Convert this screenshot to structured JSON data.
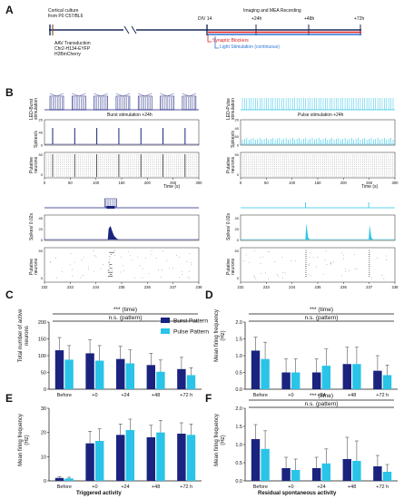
{
  "panels": {
    "A": "A",
    "B": "B",
    "C": "C",
    "D": "D",
    "E": "E",
    "F": "F"
  },
  "timeline": {
    "culture_line1": "Cortical culture",
    "culture_line2": "from P0 C57/BL6",
    "aav_line1": "AAV Transduction",
    "aav_line2": "Chr2-H134-EYFP",
    "aav_line3": "H2BmCherry",
    "div": "DIV 14",
    "recording": "Imaging and MEA Recording",
    "t24": "+24h",
    "t48": "+48h",
    "t72": "+72h",
    "blockers": "Synaptic Blockers",
    "light": "Light Stimulation (continuous)",
    "colors": {
      "blockers": "#e02020",
      "light": "#2a73d6",
      "axis": "#1a2a5a"
    }
  },
  "panelB": {
    "left": {
      "led_label": "LED-Burst stimulation",
      "title": "Burst stimulation +24h",
      "ylabel_rate": "Spikes/s",
      "ylabel_neurons": "Putative neurons",
      "ticks_top": [
        "0",
        "50",
        "100",
        "150",
        "200",
        "250",
        "300"
      ],
      "xlabel": "Time (s)",
      "rate_ticks": [
        "0",
        "40",
        "20"
      ],
      "neuron_ticks": [
        "50",
        "0"
      ],
      "zoom_ylabel": "Spikes/ 0.02s",
      "zoom_rate_ticks": [
        "0",
        "20",
        "40"
      ],
      "zoom_neuron_ticks": [
        "50",
        "0"
      ],
      "zoom_ticks": [
        "232",
        "233",
        "234",
        "235",
        "236",
        "237",
        "238"
      ]
    },
    "right": {
      "led_label": "LED-Pulse stimulation",
      "title": "Pulse stimulation +24h",
      "ylabel_rate": "Spikes/s",
      "ylabel_neurons": "Putative neurons",
      "ticks_top": [
        "0",
        "50",
        "100",
        "150",
        "200",
        "250",
        "300"
      ],
      "xlabel": "Time (s)",
      "rate_ticks": [
        "0",
        "60",
        "40",
        "20"
      ],
      "neuron_ticks": [
        "50",
        "0"
      ],
      "zoom_ylabel": "Spikes/ 0.02s",
      "zoom_rate_ticks": [
        "0",
        "20",
        "40"
      ],
      "zoom_neuron_ticks": [
        "50",
        "0"
      ],
      "zoom_ticks": [
        "232",
        "233",
        "234",
        "235",
        "236",
        "237",
        "238"
      ]
    },
    "colors": {
      "burst": "#1a237e",
      "pulse": "#29c4e8"
    }
  },
  "chart_data": [
    {
      "panel": "C",
      "type": "bar",
      "categories": [
        "Before",
        "+0",
        "+24",
        "+48",
        "+72 h"
      ],
      "ylabel": "Total number of active neurons",
      "ylim": [
        0,
        200
      ],
      "yticks": [
        "0",
        "50",
        "100",
        "150",
        "200"
      ],
      "stats_time": "*** (time)",
      "stats_pattern": "n.s. (pattern)",
      "series": [
        {
          "name": "Burst Pattern",
          "color": "#1a237e",
          "values": [
            116,
            107,
            90,
            72,
            60
          ],
          "errors": [
            38,
            40,
            38,
            35,
            35
          ]
        },
        {
          "name": "Pulse Pattern",
          "color": "#29c4e8",
          "values": [
            88,
            85,
            77,
            52,
            42
          ],
          "errors": [
            42,
            45,
            40,
            35,
            22
          ]
        }
      ]
    },
    {
      "panel": "D",
      "type": "bar",
      "categories": [
        "Before",
        "+0",
        "+24",
        "+48",
        "+72 h"
      ],
      "ylabel": "Mean firing frequency (Hz)",
      "ylim": [
        0,
        2.0
      ],
      "yticks": [
        "0.0",
        "0.5",
        "1.0",
        "1.5",
        "2.0"
      ],
      "stats_time": "*** (time)",
      "stats_pattern": "n.s. (pattern)",
      "series": [
        {
          "name": "Burst Pattern",
          "color": "#1a237e",
          "values": [
            1.15,
            0.5,
            0.5,
            0.75,
            0.55
          ],
          "errors": [
            0.4,
            0.4,
            0.4,
            0.5,
            0.45
          ]
        },
        {
          "name": "Pulse Pattern",
          "color": "#29c4e8",
          "values": [
            0.9,
            0.5,
            0.7,
            0.75,
            0.42
          ],
          "errors": [
            0.5,
            0.4,
            0.5,
            0.5,
            0.3
          ]
        }
      ]
    },
    {
      "panel": "E",
      "type": "bar",
      "categories": [
        "Before",
        "+0",
        "+24",
        "+48",
        "+72 h"
      ],
      "ylabel": "Mean firing frequency (Hz)",
      "xlabel": "Triggered activity",
      "ylim": [
        0,
        30
      ],
      "yticks": [
        "0",
        "10",
        "20",
        "30"
      ],
      "series": [
        {
          "name": "Burst Pattern",
          "color": "#1a237e",
          "values": [
            1.2,
            15.5,
            19,
            18,
            19.5
          ],
          "errors": [
            0.5,
            5,
            4.5,
            5,
            4.5
          ]
        },
        {
          "name": "Pulse Pattern",
          "color": "#29c4e8",
          "values": [
            1.0,
            16.5,
            21,
            20,
            19
          ],
          "errors": [
            0.5,
            5,
            4.5,
            5,
            4.5
          ]
        }
      ]
    },
    {
      "panel": "F",
      "type": "bar",
      "categories": [
        "Before",
        "+0",
        "+24",
        "+48",
        "+72 h"
      ],
      "ylabel": "Mean firing frequency (Hz)",
      "xlabel": "Residual spontaneous activity",
      "ylim": [
        0,
        2.0
      ],
      "yticks": [
        "0.0",
        "0.5",
        "1.0",
        "1.5",
        "2.0"
      ],
      "stats_time": "*** (time)",
      "stats_pattern": "n.s. (pattern)",
      "series": [
        {
          "name": "Burst Pattern",
          "color": "#1a237e",
          "values": [
            1.15,
            0.35,
            0.35,
            0.6,
            0.4
          ],
          "errors": [
            0.4,
            0.3,
            0.3,
            0.6,
            0.3
          ]
        },
        {
          "name": "Pulse Pattern",
          "color": "#29c4e8",
          "values": [
            0.88,
            0.3,
            0.48,
            0.55,
            0.25
          ],
          "errors": [
            0.5,
            0.3,
            0.4,
            0.55,
            0.2
          ]
        }
      ]
    }
  ]
}
